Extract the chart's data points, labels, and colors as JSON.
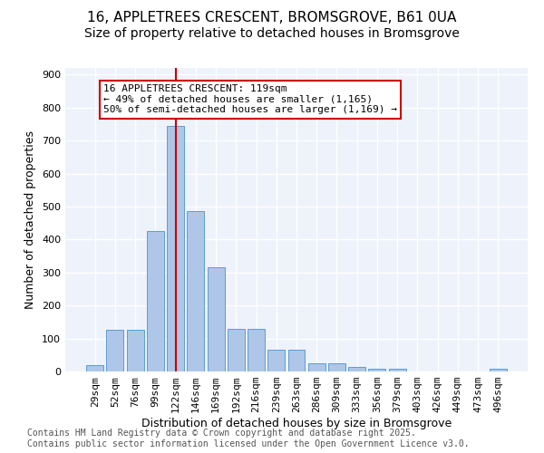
{
  "title_line1": "16, APPLETREES CRESCENT, BROMSGROVE, B61 0UA",
  "title_line2": "Size of property relative to detached houses in Bromsgrove",
  "xlabel": "Distribution of detached houses by size in Bromsgrove",
  "ylabel": "Number of detached properties",
  "bar_labels": [
    "29sqm",
    "52sqm",
    "76sqm",
    "99sqm",
    "122sqm",
    "146sqm",
    "169sqm",
    "192sqm",
    "216sqm",
    "239sqm",
    "263sqm",
    "286sqm",
    "309sqm",
    "333sqm",
    "356sqm",
    "379sqm",
    "403sqm",
    "426sqm",
    "449sqm",
    "473sqm",
    "496sqm"
  ],
  "bar_values": [
    20,
    125,
    125,
    425,
    745,
    485,
    315,
    130,
    130,
    65,
    65,
    25,
    25,
    15,
    8,
    8,
    0,
    0,
    0,
    0,
    8
  ],
  "bar_color": "#aec6e8",
  "bar_edgecolor": "#5a9fd4",
  "vline_x": 4.0,
  "vline_color": "#cc0000",
  "annotation_text": "16 APPLETREES CRESCENT: 119sqm\n← 49% of detached houses are smaller (1,165)\n50% of semi-detached houses are larger (1,169) →",
  "annotation_box_color": "#ffffff",
  "annotation_box_edgecolor": "#cc0000",
  "ylim": [
    0,
    920
  ],
  "yticks": [
    0,
    100,
    200,
    300,
    400,
    500,
    600,
    700,
    800,
    900
  ],
  "background_color": "#eef2fb",
  "grid_color": "#ffffff",
  "footer_text": "Contains HM Land Registry data © Crown copyright and database right 2025.\nContains public sector information licensed under the Open Government Licence v3.0.",
  "title_fontsize": 11,
  "subtitle_fontsize": 10,
  "axis_label_fontsize": 9,
  "tick_fontsize": 8,
  "annotation_fontsize": 8,
  "footer_fontsize": 7
}
